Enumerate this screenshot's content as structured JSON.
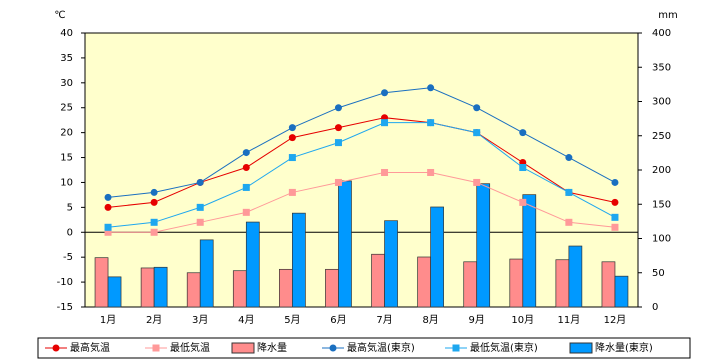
{
  "chart_data": {
    "type": "combo",
    "ylabel": "℃",
    "y2label": "mm",
    "categories": [
      "1月",
      "2月",
      "3月",
      "4月",
      "5月",
      "6月",
      "7月",
      "8月",
      "9月",
      "10月",
      "11月",
      "12月"
    ],
    "ylim": [
      -15,
      40
    ],
    "yticks": [
      -15,
      -10,
      -5,
      0,
      5,
      10,
      15,
      20,
      25,
      30,
      35,
      40
    ],
    "y2lim": [
      0,
      400
    ],
    "y2ticks": [
      0,
      50,
      100,
      150,
      200,
      250,
      300,
      350,
      400
    ],
    "background": "#ffffcc",
    "series": [
      {
        "name": "最高気温",
        "type": "line",
        "marker": "circle",
        "color": "#e60000",
        "values": [
          5,
          6,
          10,
          13,
          19,
          21,
          23,
          22,
          20,
          14,
          8,
          6
        ]
      },
      {
        "name": "最低気温",
        "type": "line",
        "marker": "square",
        "color": "#ff9999",
        "values": [
          0,
          0,
          2,
          4,
          8,
          10,
          12,
          12,
          10,
          6,
          2,
          1
        ]
      },
      {
        "name": "降水量",
        "type": "bar",
        "axis": "y2",
        "color": "#ff8c8c",
        "values": [
          72,
          57,
          50,
          53,
          55,
          55,
          77,
          73,
          66,
          70,
          69,
          66
        ]
      },
      {
        "name": "最高気温(東京)",
        "type": "line",
        "marker": "circle",
        "color": "#1a6fc0",
        "values": [
          7,
          8,
          10,
          16,
          21,
          25,
          28,
          29,
          25,
          20,
          15,
          10
        ]
      },
      {
        "name": "最低気温(東京)",
        "type": "line",
        "marker": "square",
        "color": "#1ea7ef",
        "values": [
          1,
          2,
          5,
          9,
          15,
          18,
          22,
          22,
          20,
          13,
          8,
          3
        ]
      },
      {
        "name": "降水量(東京)",
        "type": "bar",
        "axis": "y2",
        "color": "#0099ff",
        "values": [
          44,
          58,
          98,
          124,
          137,
          184,
          126,
          146,
          180,
          164,
          89,
          45
        ]
      }
    ]
  }
}
